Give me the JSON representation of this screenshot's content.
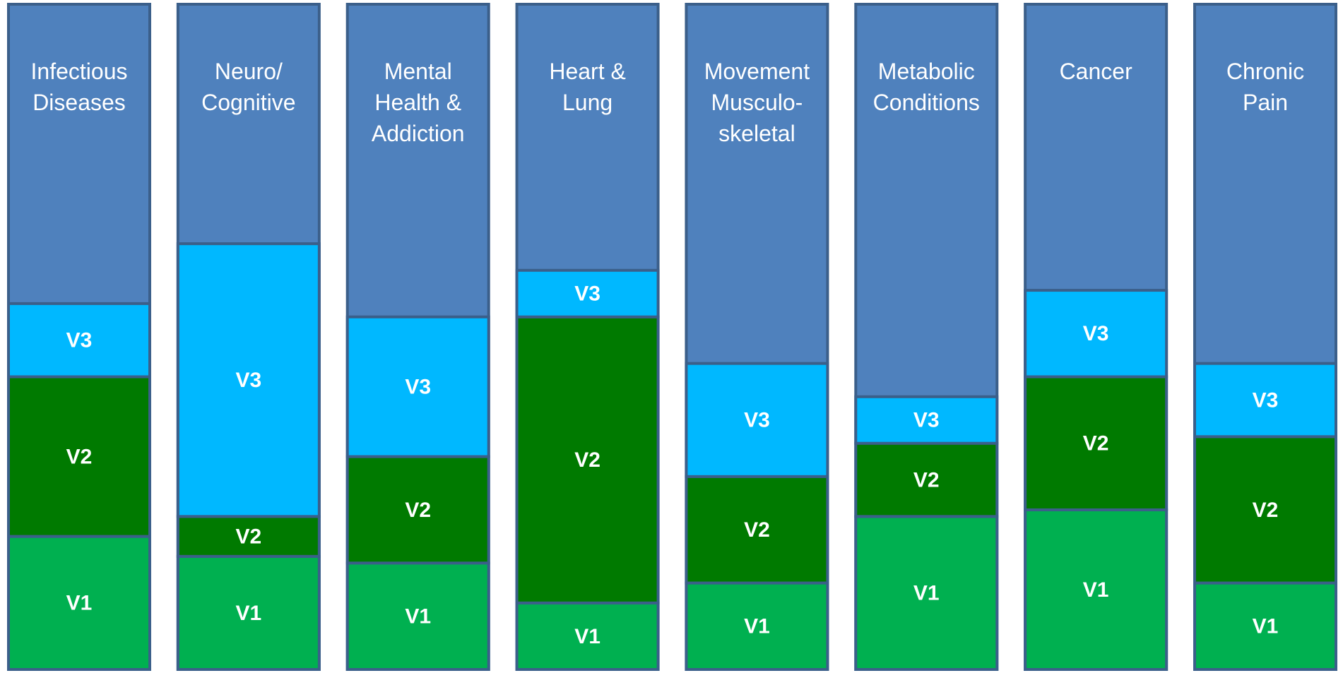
{
  "chart_data": {
    "type": "stacked-column",
    "categories": [
      "Infectious\nDiseases",
      "Neuro/\nCognitive",
      "Mental\nHealth &\nAddiction",
      "Heart &\nLung",
      "Movement\nMusculo-\nskeletal",
      "Metabolic\nConditions",
      "Cancer",
      "Chronic\nPain"
    ],
    "background_color": "#4f81bd",
    "ylim": [
      0,
      100
    ],
    "series": [
      {
        "name": "V1",
        "color": "#00b050",
        "values": [
          20,
          17,
          16,
          10,
          13,
          23,
          24,
          13
        ]
      },
      {
        "name": "V2",
        "color": "#007a00",
        "values": [
          24,
          6,
          16,
          43,
          16,
          11,
          20,
          22
        ]
      },
      {
        "name": "V3",
        "color": "#00b8ff",
        "values": [
          11,
          41,
          21,
          7,
          17,
          7,
          13,
          11
        ]
      }
    ]
  }
}
